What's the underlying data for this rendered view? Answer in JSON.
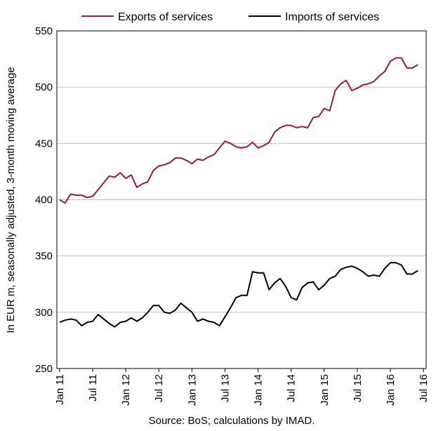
{
  "chart_data": {
    "type": "line",
    "ylabel": "In EUR m, seasonally adjusted, 3-month moving average",
    "ylim": [
      250,
      550
    ],
    "yticks": [
      250,
      300,
      350,
      400,
      450,
      500,
      550
    ],
    "x_tick_labels": [
      "Jan 11",
      "Jul 11",
      "Jan 12",
      "Jul 12",
      "Jan 13",
      "Jul 13",
      "Jan 14",
      "Jul 14",
      "Jan 15",
      "Jul 15",
      "Jan 16",
      "Jul 16"
    ],
    "x_start": "Jan 2011",
    "grid": true,
    "legend_position": "top",
    "source": "Source: BoS; calculations by IMAD.",
    "series": [
      {
        "name": "Exports of services",
        "color": "#9b1b30",
        "values": [
          400,
          397,
          405,
          404,
          404,
          402,
          403,
          409,
          415,
          421,
          420,
          424,
          419,
          422,
          411,
          414,
          416,
          426,
          430,
          431,
          433,
          437,
          437,
          435,
          432,
          436,
          435,
          438,
          440,
          446,
          452,
          450,
          447,
          446,
          447,
          451,
          446,
          448,
          451,
          460,
          464,
          466,
          466,
          464,
          465,
          464,
          473,
          474,
          481,
          479,
          497,
          503,
          506,
          497,
          499,
          502,
          503,
          505,
          510,
          514,
          523,
          526,
          526,
          517,
          517,
          520
        ]
      },
      {
        "name": "Imports of services",
        "color": "#000000",
        "values": [
          291,
          293,
          294,
          293,
          288,
          291,
          292,
          298,
          294,
          290,
          287,
          291,
          292,
          295,
          292,
          295,
          300,
          306,
          306,
          300,
          299,
          302,
          308,
          304,
          300,
          292,
          294,
          292,
          291,
          288,
          296,
          304,
          313,
          315,
          315,
          336,
          335,
          335,
          320,
          326,
          330,
          323,
          313,
          311,
          322,
          326,
          327,
          320,
          324,
          330,
          332,
          338,
          340,
          341,
          339,
          336,
          332,
          333,
          332,
          339,
          344,
          344,
          342,
          334,
          334,
          337
        ]
      }
    ]
  }
}
